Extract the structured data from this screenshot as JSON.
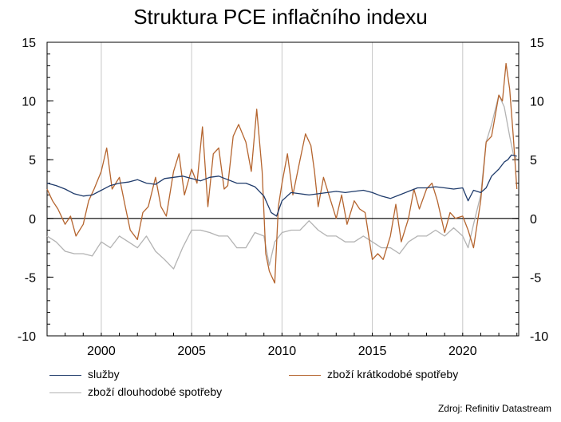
{
  "title": "Struktura PCE inflačního indexu",
  "source": "Zdroj: Refinitiv Datastream",
  "colors": {
    "sluzby": "#1f3b6b",
    "kratkodobe": "#b5652f",
    "dlouhodobe": "#b3b3b3",
    "grid": "#c8c8c8",
    "zero": "#000000"
  },
  "chart_data": {
    "type": "line",
    "title": "Struktura PCE inflačního indexu",
    "xlim": [
      1997.0,
      2023.1
    ],
    "ylim": [
      -10,
      15
    ],
    "x_ticks": [
      2000,
      2005,
      2010,
      2015,
      2020
    ],
    "x_tick_labels": [
      "2000",
      "2005",
      "2010",
      "2015",
      "2020"
    ],
    "y_ticks": [
      -10,
      -5,
      0,
      5,
      10,
      15
    ],
    "y_tick_labels": [
      "-10",
      "-5",
      "0",
      "5",
      "10",
      "15"
    ],
    "grid": "vertical",
    "legend_placement": "bottom",
    "series": [
      {
        "name": "služby",
        "color": "#1f3b6b",
        "x": [
          1997.0,
          1997.5,
          1998.0,
          1998.5,
          1999.0,
          1999.5,
          2000.0,
          2000.5,
          2001.0,
          2001.5,
          2002.0,
          2002.5,
          2003.0,
          2003.5,
          2004.0,
          2004.5,
          2005.0,
          2005.5,
          2006.0,
          2006.5,
          2007.0,
          2007.5,
          2008.0,
          2008.5,
          2009.0,
          2009.4,
          2009.7,
          2010.0,
          2010.5,
          2011.0,
          2011.5,
          2012.0,
          2012.5,
          2013.0,
          2013.5,
          2014.0,
          2014.5,
          2015.0,
          2015.5,
          2016.0,
          2016.5,
          2017.0,
          2017.5,
          2018.0,
          2018.5,
          2019.0,
          2019.5,
          2020.0,
          2020.3,
          2020.6,
          2021.0,
          2021.3,
          2021.6,
          2022.0,
          2022.3,
          2022.5,
          2022.7,
          2023.0
        ],
        "y": [
          3.0,
          2.8,
          2.5,
          2.1,
          1.9,
          2.0,
          2.4,
          2.8,
          3.0,
          3.1,
          3.3,
          3.0,
          2.9,
          3.4,
          3.5,
          3.6,
          3.4,
          3.2,
          3.5,
          3.6,
          3.3,
          3.0,
          3.0,
          2.7,
          1.9,
          0.5,
          0.2,
          1.5,
          2.2,
          2.1,
          2.0,
          2.1,
          2.2,
          2.3,
          2.2,
          2.3,
          2.4,
          2.2,
          1.9,
          1.7,
          2.0,
          2.3,
          2.6,
          2.6,
          2.7,
          2.6,
          2.5,
          2.6,
          1.5,
          2.4,
          2.2,
          2.6,
          3.6,
          4.2,
          4.8,
          5.0,
          5.4,
          5.3
        ]
      },
      {
        "name": "zboží krátkodobé spotřeby",
        "color": "#b5652f",
        "x": [
          1997.0,
          1997.3,
          1997.6,
          1998.0,
          1998.3,
          1998.6,
          1999.0,
          1999.3,
          1999.6,
          2000.0,
          2000.3,
          2000.6,
          2001.0,
          2001.3,
          2001.6,
          2002.0,
          2002.3,
          2002.6,
          2003.0,
          2003.3,
          2003.6,
          2004.0,
          2004.3,
          2004.6,
          2005.0,
          2005.3,
          2005.6,
          2005.9,
          2006.2,
          2006.5,
          2006.8,
          2007.0,
          2007.3,
          2007.6,
          2008.0,
          2008.3,
          2008.6,
          2008.9,
          2009.1,
          2009.3,
          2009.6,
          2009.8,
          2010.0,
          2010.3,
          2010.6,
          2011.0,
          2011.3,
          2011.6,
          2011.8,
          2012.0,
          2012.3,
          2012.6,
          2013.0,
          2013.3,
          2013.6,
          2014.0,
          2014.3,
          2014.6,
          2015.0,
          2015.3,
          2015.6,
          2016.0,
          2016.3,
          2016.6,
          2017.0,
          2017.3,
          2017.6,
          2018.0,
          2018.3,
          2018.6,
          2019.0,
          2019.3,
          2019.6,
          2020.0,
          2020.3,
          2020.6,
          2021.0,
          2021.3,
          2021.6,
          2022.0,
          2022.2,
          2022.4,
          2022.6,
          2022.8,
          2023.0
        ],
        "y": [
          2.5,
          1.5,
          0.8,
          -0.5,
          0.2,
          -1.5,
          -0.5,
          1.5,
          2.5,
          4.0,
          6.0,
          2.5,
          3.5,
          1.2,
          -1.0,
          -1.8,
          0.5,
          1.0,
          3.5,
          1.0,
          0.2,
          4.0,
          5.5,
          2.0,
          4.2,
          3.0,
          7.8,
          1.0,
          5.5,
          6.0,
          2.5,
          2.8,
          7.0,
          8.0,
          6.5,
          4.0,
          9.3,
          4.0,
          -3.0,
          -4.5,
          -5.5,
          1.0,
          3.0,
          5.5,
          2.0,
          5.0,
          7.2,
          6.2,
          4.0,
          1.0,
          3.5,
          2.0,
          0.0,
          2.0,
          -0.5,
          1.5,
          0.8,
          0.5,
          -3.5,
          -3.0,
          -3.5,
          -1.5,
          1.2,
          -2.0,
          0.0,
          2.5,
          0.8,
          2.5,
          3.0,
          1.5,
          -1.2,
          0.5,
          0.0,
          0.2,
          -1.0,
          -2.5,
          1.5,
          6.5,
          7.0,
          10.5,
          10.0,
          13.2,
          11.0,
          7.0,
          2.5
        ]
      },
      {
        "name": "zboží dlouhodobé spotřeby",
        "color": "#b3b3b3",
        "x": [
          1997.0,
          1997.5,
          1998.0,
          1998.5,
          1999.0,
          1999.5,
          2000.0,
          2000.5,
          2001.0,
          2001.5,
          2002.0,
          2002.5,
          2003.0,
          2003.5,
          2004.0,
          2004.5,
          2005.0,
          2005.5,
          2006.0,
          2006.5,
          2007.0,
          2007.5,
          2008.0,
          2008.5,
          2009.0,
          2009.3,
          2009.6,
          2010.0,
          2010.5,
          2011.0,
          2011.5,
          2012.0,
          2012.5,
          2013.0,
          2013.5,
          2014.0,
          2014.5,
          2015.0,
          2015.5,
          2016.0,
          2016.5,
          2017.0,
          2017.5,
          2018.0,
          2018.5,
          2019.0,
          2019.5,
          2020.0,
          2020.3,
          2020.6,
          2021.0,
          2021.3,
          2021.6,
          2022.0,
          2022.3,
          2022.6,
          2022.8,
          2023.0
        ],
        "y": [
          -1.5,
          -2.0,
          -2.8,
          -3.0,
          -3.0,
          -3.2,
          -2.0,
          -2.5,
          -1.5,
          -2.0,
          -2.5,
          -1.5,
          -2.8,
          -3.5,
          -4.3,
          -2.5,
          -1.0,
          -1.0,
          -1.2,
          -1.5,
          -1.5,
          -2.5,
          -2.5,
          -1.2,
          -1.5,
          -4.0,
          -2.0,
          -1.2,
          -1.0,
          -1.0,
          -0.2,
          -1.0,
          -1.5,
          -1.5,
          -2.0,
          -2.0,
          -1.5,
          -2.0,
          -2.5,
          -2.5,
          -3.0,
          -2.0,
          -1.5,
          -1.5,
          -1.0,
          -1.5,
          -0.8,
          -1.5,
          -2.5,
          -0.5,
          2.0,
          6.5,
          8.0,
          10.5,
          9.5,
          7.0,
          5.5,
          5.0
        ]
      }
    ]
  }
}
